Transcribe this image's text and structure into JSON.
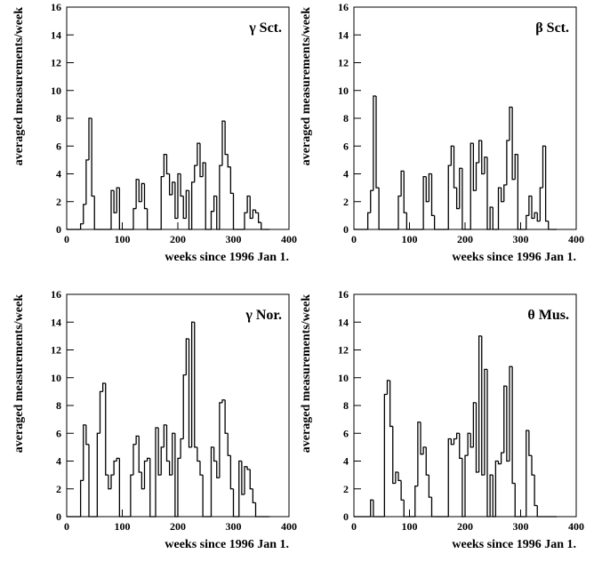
{
  "chart_data": [
    {
      "type": "step",
      "annotation": "γ Sct.",
      "xlabel": "weeks since  1996 Jan 1.",
      "ylabel": "averaged measurements/week",
      "xlim": [
        0,
        400
      ],
      "ylim": [
        0,
        16
      ],
      "xticks": [
        0,
        100,
        200,
        300,
        400
      ],
      "yticks": [
        0,
        2,
        4,
        6,
        8,
        10,
        12,
        14,
        16
      ],
      "color": "#000000",
      "x": [
        0,
        5,
        10,
        15,
        20,
        25,
        30,
        35,
        40,
        45,
        50,
        55,
        60,
        65,
        70,
        75,
        80,
        85,
        90,
        95,
        100,
        105,
        110,
        115,
        120,
        125,
        130,
        135,
        140,
        145,
        150,
        155,
        160,
        165,
        170,
        175,
        180,
        185,
        190,
        195,
        200,
        205,
        210,
        215,
        220,
        225,
        230,
        235,
        240,
        245,
        250,
        255,
        260,
        265,
        270,
        275,
        280,
        285,
        290,
        295,
        300,
        305,
        310,
        315,
        320,
        325,
        330,
        335,
        340,
        345,
        350,
        355,
        360
      ],
      "values": [
        0,
        0,
        0,
        0,
        0,
        0.4,
        1.8,
        5,
        8,
        2.4,
        0,
        0,
        0,
        0,
        0,
        0,
        2.8,
        1.2,
        3,
        0,
        0,
        0,
        0,
        0,
        1.5,
        3.6,
        2,
        3.3,
        1.5,
        0,
        0,
        0,
        0,
        0,
        3.8,
        5.4,
        4,
        2.5,
        3.4,
        0.8,
        4,
        2.4,
        0.8,
        2.8,
        0,
        3.4,
        4.6,
        6.2,
        3.8,
        4.8,
        0,
        0,
        1.3,
        2.4,
        0,
        4.6,
        7.8,
        5.4,
        4.5,
        2.6,
        0,
        0,
        0,
        0,
        1.2,
        2.4,
        0.8,
        1.4,
        1.2,
        0.5,
        0,
        0,
        0
      ]
    },
    {
      "type": "step",
      "annotation": "β Sct.",
      "xlabel": "weeks since  1996 Jan 1.",
      "ylabel": "averaged measurements/week",
      "xlim": [
        0,
        400
      ],
      "ylim": [
        0,
        16
      ],
      "xticks": [
        0,
        100,
        200,
        300,
        400
      ],
      "yticks": [
        0,
        2,
        4,
        6,
        8,
        10,
        12,
        14,
        16
      ],
      "color": "#000000",
      "x": [
        0,
        5,
        10,
        15,
        20,
        25,
        30,
        35,
        40,
        45,
        50,
        55,
        60,
        65,
        70,
        75,
        80,
        85,
        90,
        95,
        100,
        105,
        110,
        115,
        120,
        125,
        130,
        135,
        140,
        145,
        150,
        155,
        160,
        165,
        170,
        175,
        180,
        185,
        190,
        195,
        200,
        205,
        210,
        215,
        220,
        225,
        230,
        235,
        240,
        245,
        250,
        255,
        260,
        265,
        270,
        275,
        280,
        285,
        290,
        295,
        300,
        305,
        310,
        315,
        320,
        325,
        330,
        335,
        340,
        345,
        350,
        355,
        360
      ],
      "values": [
        0,
        0,
        0,
        0,
        0,
        1.2,
        2.8,
        9.6,
        3,
        0,
        0,
        0,
        0,
        0,
        0,
        0,
        2.4,
        4.2,
        1.2,
        0,
        0,
        0,
        0,
        0,
        0,
        3.8,
        2,
        4,
        1,
        0,
        0,
        0,
        0,
        0,
        4.6,
        6,
        3,
        1.5,
        4.4,
        0,
        0,
        0,
        6.2,
        2.8,
        4.8,
        6.4,
        4,
        5.2,
        0,
        1.6,
        0,
        0,
        3,
        2,
        3.2,
        6.4,
        8.8,
        3.6,
        5.4,
        0,
        0,
        0,
        1,
        2.4,
        0.8,
        1.2,
        0.6,
        3,
        6,
        0.6,
        0,
        0,
        0
      ]
    },
    {
      "type": "step",
      "annotation": "γ Nor.",
      "xlabel": "weeks since  1996 Jan 1.",
      "ylabel": "averaged measurements/week",
      "xlim": [
        0,
        400
      ],
      "ylim": [
        0,
        16
      ],
      "xticks": [
        0,
        100,
        200,
        300,
        400
      ],
      "yticks": [
        0,
        2,
        4,
        6,
        8,
        10,
        12,
        14,
        16
      ],
      "color": "#000000",
      "x": [
        0,
        5,
        10,
        15,
        20,
        25,
        30,
        35,
        40,
        45,
        50,
        55,
        60,
        65,
        70,
        75,
        80,
        85,
        90,
        95,
        100,
        105,
        110,
        115,
        120,
        125,
        130,
        135,
        140,
        145,
        150,
        155,
        160,
        165,
        170,
        175,
        180,
        185,
        190,
        195,
        200,
        205,
        210,
        215,
        220,
        225,
        230,
        235,
        240,
        245,
        250,
        255,
        260,
        265,
        270,
        275,
        280,
        285,
        290,
        295,
        300,
        305,
        310,
        315,
        320,
        325,
        330,
        335,
        340,
        345,
        350,
        355,
        360
      ],
      "values": [
        0,
        0,
        0,
        0,
        0,
        2.6,
        6.6,
        5.2,
        0,
        0,
        0,
        6,
        9,
        9.6,
        3,
        2,
        3,
        4,
        4.2,
        0,
        0,
        0,
        0,
        3,
        5.2,
        5.8,
        3.2,
        2,
        4,
        4.2,
        0,
        0,
        6.4,
        3,
        5,
        6.6,
        4,
        3,
        6,
        0,
        4.2,
        5.6,
        10.2,
        12.8,
        5,
        14,
        5,
        4,
        3,
        0,
        0,
        0,
        5,
        4,
        2.8,
        8.2,
        8.4,
        6,
        4.4,
        2,
        0,
        0,
        4,
        1.6,
        3.6,
        3.4,
        2,
        1,
        0,
        0,
        0,
        0,
        0
      ]
    },
    {
      "type": "step",
      "annotation": "θ Mus.",
      "xlabel": "weeks since  1996 Jan 1.",
      "ylabel": "averaged measurements/week",
      "xlim": [
        0,
        400
      ],
      "ylim": [
        0,
        16
      ],
      "xticks": [
        0,
        100,
        200,
        300,
        400
      ],
      "yticks": [
        0,
        2,
        4,
        6,
        8,
        10,
        12,
        14,
        16
      ],
      "color": "#000000",
      "x": [
        0,
        5,
        10,
        15,
        20,
        25,
        30,
        35,
        40,
        45,
        50,
        55,
        60,
        65,
        70,
        75,
        80,
        85,
        90,
        95,
        100,
        105,
        110,
        115,
        120,
        125,
        130,
        135,
        140,
        145,
        150,
        155,
        160,
        165,
        170,
        175,
        180,
        185,
        190,
        195,
        200,
        205,
        210,
        215,
        220,
        225,
        230,
        235,
        240,
        245,
        250,
        255,
        260,
        265,
        270,
        275,
        280,
        285,
        290,
        295,
        300,
        305,
        310,
        315,
        320,
        325,
        330,
        335,
        340,
        345,
        350,
        355,
        360
      ],
      "values": [
        0,
        0,
        0,
        0,
        0,
        0,
        1.2,
        0,
        0,
        0,
        0,
        8.8,
        9.8,
        6.5,
        2.4,
        3.2,
        2.6,
        1.2,
        0,
        0,
        0,
        0,
        2.2,
        6.8,
        4.5,
        5,
        3,
        1.4,
        0,
        0,
        0,
        0,
        0,
        0,
        5.6,
        5.2,
        5.6,
        6,
        4.2,
        0,
        4.4,
        6,
        5,
        8.2,
        3.2,
        13,
        3,
        10.6,
        0,
        3,
        0,
        4,
        3.8,
        4.6,
        9.4,
        4,
        10.8,
        2.4,
        0,
        0,
        0,
        0,
        6.2,
        4.4,
        3,
        0.8,
        0,
        0,
        0,
        0,
        0,
        0,
        0
      ]
    }
  ]
}
